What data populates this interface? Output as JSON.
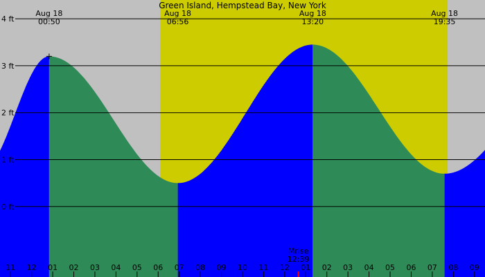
{
  "chart_data": {
    "type": "area",
    "title": "Green Island, Hempstead Bay, New York",
    "x_unit": "hour",
    "xlim": [
      -1.5,
      21.5
    ],
    "ylim": [
      -1.5,
      4.4
    ],
    "y_ticks": [
      {
        "value": 0,
        "label": "0 ft"
      },
      {
        "value": 1,
        "label": "1 ft"
      },
      {
        "value": 2,
        "label": "2 ft"
      },
      {
        "value": 3,
        "label": "3 ft"
      },
      {
        "value": 4,
        "label": "4 ft"
      }
    ],
    "x_ticks": [
      {
        "value": -1,
        "label": "11"
      },
      {
        "value": 0,
        "label": "12"
      },
      {
        "value": 1,
        "label": "01"
      },
      {
        "value": 2,
        "label": "02"
      },
      {
        "value": 3,
        "label": "03"
      },
      {
        "value": 4,
        "label": "04"
      },
      {
        "value": 5,
        "label": "05"
      },
      {
        "value": 6,
        "label": "06"
      },
      {
        "value": 7,
        "label": "07"
      },
      {
        "value": 8,
        "label": "08"
      },
      {
        "value": 9,
        "label": "09"
      },
      {
        "value": 10,
        "label": "10"
      },
      {
        "value": 11,
        "label": "11"
      },
      {
        "value": 12,
        "label": "12"
      },
      {
        "value": 13,
        "label": "01"
      },
      {
        "value": 14,
        "label": "02"
      },
      {
        "value": 15,
        "label": "03"
      },
      {
        "value": 16,
        "label": "04"
      },
      {
        "value": 17,
        "label": "05"
      },
      {
        "value": 18,
        "label": "06"
      },
      {
        "value": 19,
        "label": "07"
      },
      {
        "value": 20,
        "label": "08"
      },
      {
        "value": 21,
        "label": "09"
      }
    ],
    "daylight": {
      "start": 6.1,
      "end": 19.73
    },
    "extremes": [
      {
        "x": -2.4,
        "y": 0.75,
        "kind": "low"
      },
      {
        "x": 0.83,
        "y": 3.2,
        "kind": "high",
        "date": "Aug 18",
        "time": "00:50"
      },
      {
        "x": 6.93,
        "y": 0.5,
        "kind": "low",
        "date": "Aug 18",
        "time": "06:56"
      },
      {
        "x": 13.33,
        "y": 3.45,
        "kind": "high",
        "date": "Aug 18",
        "time": "13:20"
      },
      {
        "x": 19.58,
        "y": 0.7,
        "kind": "low",
        "date": "Aug 18",
        "time": "19:35"
      },
      {
        "x": 25.9,
        "y": 3.1,
        "kind": "high"
      }
    ],
    "moonrise": {
      "label": "Mrise",
      "time": "12:39",
      "x": 12.65
    },
    "colors": {
      "night": "#c0c0c0",
      "day": "#cccc00",
      "rising": "#0000ff",
      "falling": "#2e8b57",
      "gridline": "#000000",
      "moonrise": "#ff0000"
    }
  }
}
